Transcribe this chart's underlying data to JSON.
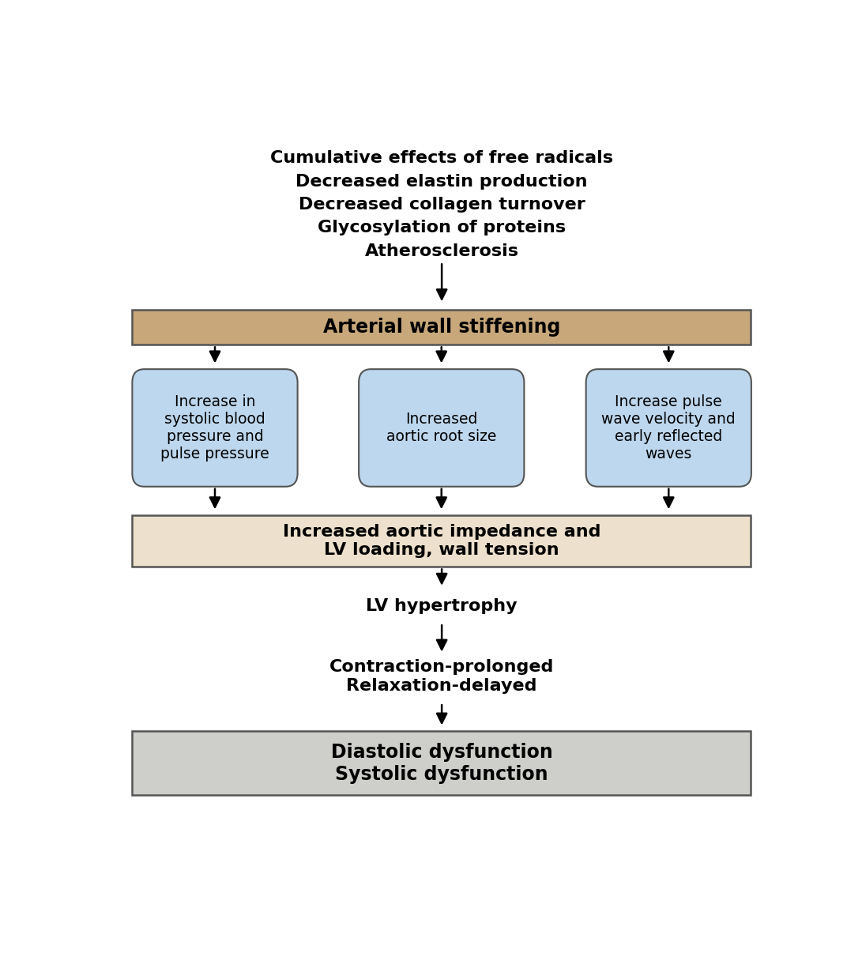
{
  "top_text_lines": [
    "Cumulative effects of free radicals",
    "Decreased elastin production",
    "Decreased collagen turnover",
    "Glycosylation of proteins",
    "Atherosclerosis"
  ],
  "box1_text": "Arterial wall stiffening",
  "box1_color": "#C8A87A",
  "box1_edge": "#555555",
  "blue_boxes": [
    "Increase in\nsystolic blood\npressure and\npulse pressure",
    "Increased\naortic root size",
    "Increase pulse\nwave velocity and\nearly reflected\nwaves"
  ],
  "blue_box_color": "#BDD7EE",
  "blue_box_edge": "#555555",
  "box2_text": "Increased aortic impedance and\nLV loading, wall tension",
  "box2_color": "#EDE0CC",
  "box2_edge": "#555555",
  "lv_text": "LV hypertrophy",
  "contraction_text": "Contraction-prolonged\nRelaxation-delayed",
  "box3_text": "Diastolic dysfunction\nSystolic dysfunction",
  "box3_color": "#CECECA",
  "box3_edge": "#555555",
  "arrow_color": "#000000",
  "text_color": "#000000",
  "bg_color": "#FFFFFF",
  "fig_width": 10.91,
  "fig_height": 12.3,
  "dpi": 100
}
